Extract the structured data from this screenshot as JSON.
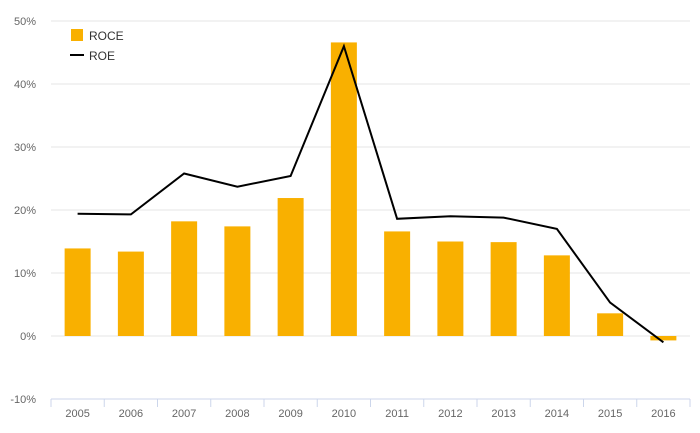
{
  "chart_data": {
    "type": "bar",
    "categories": [
      "2005",
      "2006",
      "2007",
      "2008",
      "2009",
      "2010",
      "2011",
      "2012",
      "2013",
      "2014",
      "2015",
      "2016"
    ],
    "series": [
      {
        "name": "ROCE",
        "type": "bar",
        "color": "#f9b000",
        "values": [
          13.9,
          13.4,
          18.2,
          17.4,
          21.9,
          46.6,
          16.6,
          15.0,
          14.9,
          12.8,
          3.6,
          -0.7
        ]
      },
      {
        "name": "ROE",
        "type": "line",
        "color": "#000000",
        "values": [
          19.4,
          19.3,
          25.8,
          23.7,
          25.4,
          46.0,
          18.6,
          19.0,
          18.8,
          17.0,
          5.3,
          -1.0
        ]
      }
    ],
    "ylim": [
      -10,
      50
    ],
    "yticks": [
      "-10%",
      "0%",
      "10%",
      "20%",
      "30%",
      "40%",
      "50%"
    ],
    "ytick_values": [
      -10,
      0,
      10,
      20,
      30,
      40,
      50
    ],
    "grid": true,
    "legend_position": "top-left"
  }
}
